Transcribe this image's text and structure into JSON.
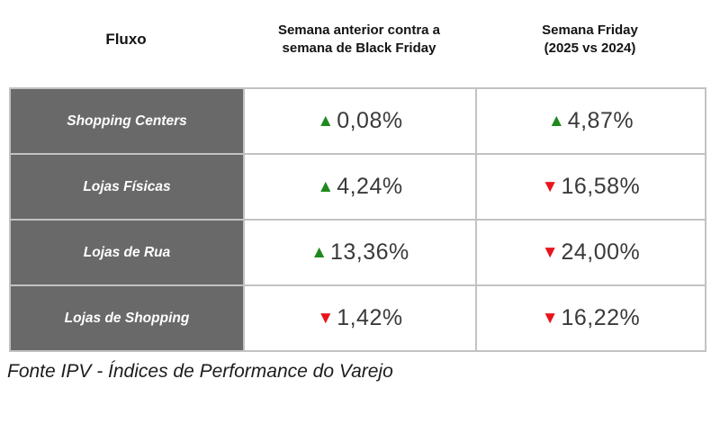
{
  "header": {
    "col_fluxo": "Fluxo",
    "col_prev_line1": "Semana anterior contra a",
    "col_prev_line2": "semana de Black Friday",
    "col_friday_line1": "Semana Friday",
    "col_friday_line2": "(2025 vs 2024)"
  },
  "table": {
    "rows": [
      {
        "label": "Shopping Centers",
        "prev": {
          "arrow": "▲",
          "direction": "up",
          "value": "0,08%"
        },
        "friday": {
          "arrow": "▲",
          "direction": "up",
          "value": "4,87%"
        }
      },
      {
        "label": "Lojas Físicas",
        "prev": {
          "arrow": "▲",
          "direction": "up",
          "value": "4,24%"
        },
        "friday": {
          "arrow": "▼",
          "direction": "down",
          "value": "16,58%"
        }
      },
      {
        "label": "Lojas de Rua",
        "prev": {
          "arrow": "▲",
          "direction": "up",
          "value": "13,36%"
        },
        "friday": {
          "arrow": "▼",
          "direction": "down",
          "value": "24,00%"
        }
      },
      {
        "label": "Lojas de Shopping",
        "prev": {
          "arrow": "▼",
          "direction": "down",
          "value": "1,42%"
        },
        "friday": {
          "arrow": "▼",
          "direction": "down",
          "value": "16,22%"
        }
      }
    ]
  },
  "footer": {
    "source": "Fonte IPV - Índices de Performance do Varejo"
  },
  "colors": {
    "up_green": "#1e8a1e",
    "down_red": "#e8141c",
    "row_label_bg": "#696969",
    "cell_border": "#c2c2c2"
  },
  "chart_data": {
    "type": "table",
    "columns": [
      "Fluxo",
      "Semana anterior contra a semana de Black Friday",
      "Semana Friday (2025 vs 2024)"
    ],
    "rows": [
      {
        "fluxo": "Shopping Centers",
        "semana_anterior_vs_black_friday_pct": 0.08,
        "semana_friday_2025_vs_2024_pct": 4.87,
        "directions": [
          "up",
          "up"
        ]
      },
      {
        "fluxo": "Lojas Físicas",
        "semana_anterior_vs_black_friday_pct": 4.24,
        "semana_friday_2025_vs_2024_pct": -16.58,
        "directions": [
          "up",
          "down"
        ]
      },
      {
        "fluxo": "Lojas de Rua",
        "semana_anterior_vs_black_friday_pct": 13.36,
        "semana_friday_2025_vs_2024_pct": -24.0,
        "directions": [
          "up",
          "down"
        ]
      },
      {
        "fluxo": "Lojas de Shopping",
        "semana_anterior_vs_black_friday_pct": -1.42,
        "semana_friday_2025_vs_2024_pct": -16.22,
        "directions": [
          "down",
          "down"
        ]
      }
    ],
    "source": "Fonte IPV - Índices de Performance do Varejo"
  }
}
